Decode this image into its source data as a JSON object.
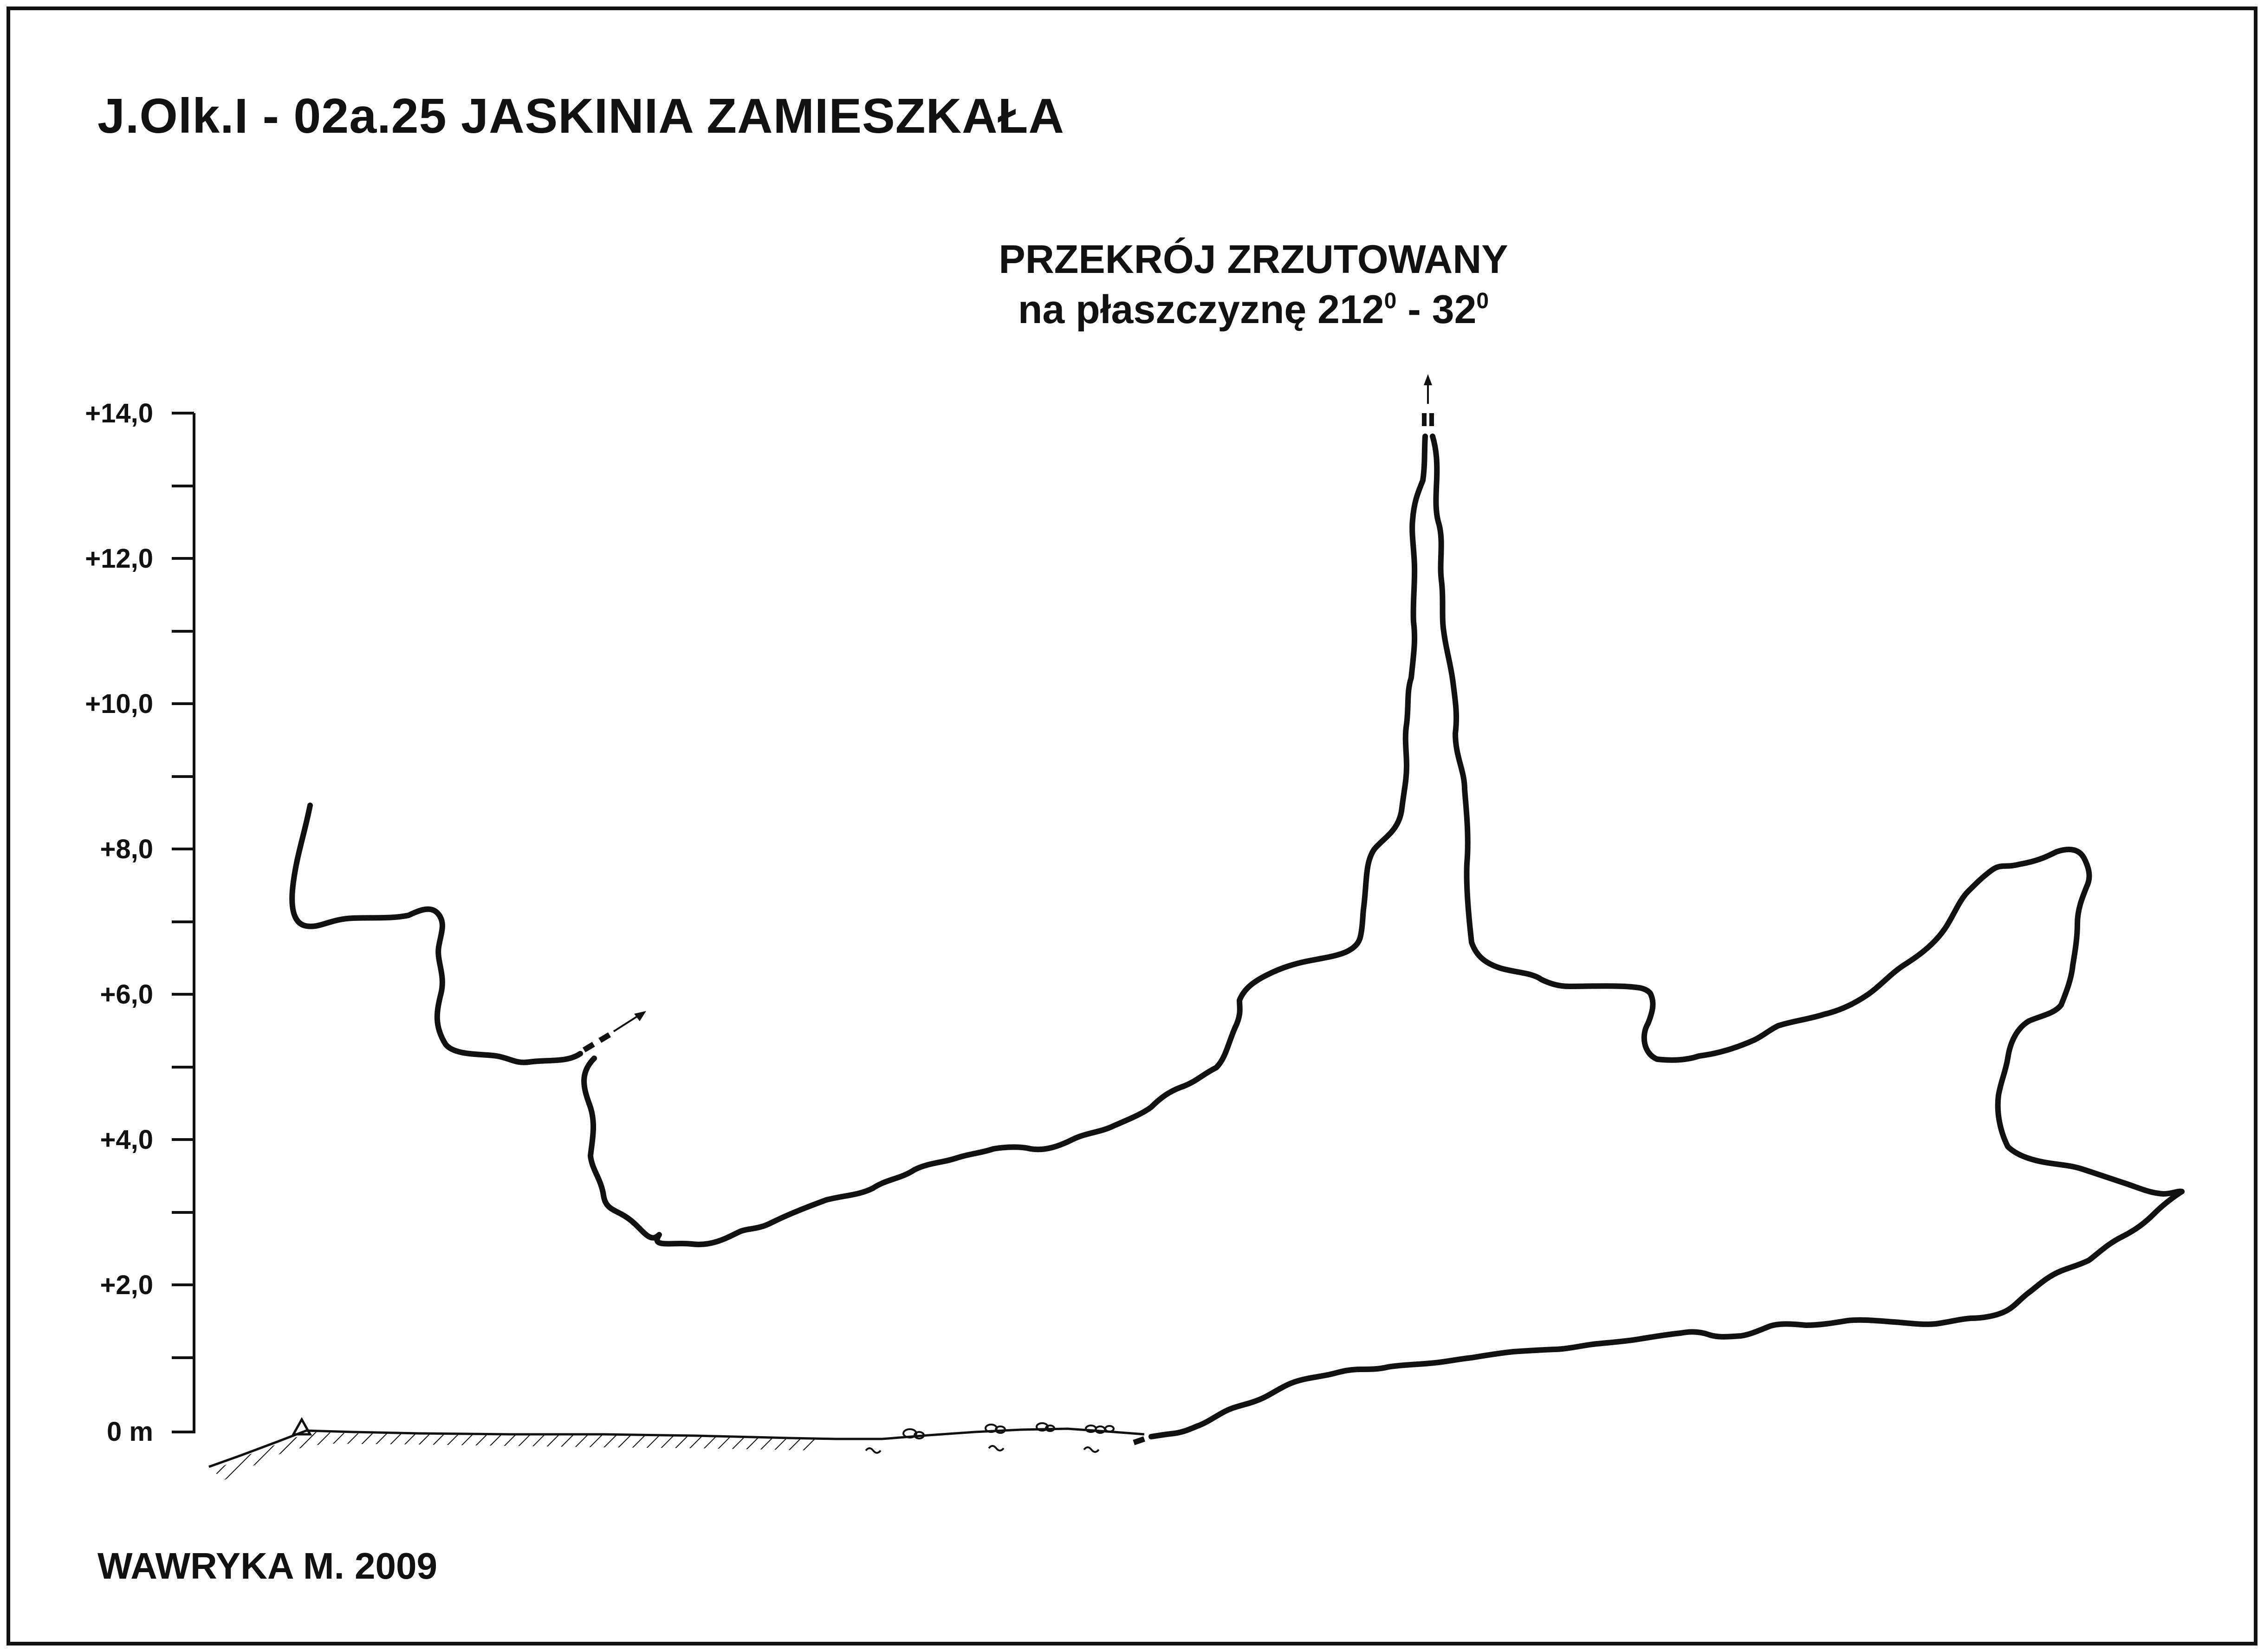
{
  "header": {
    "title": "J.Olk.I - 02a.25  JASKINIA ZAMIESZKAŁA",
    "subtitle_line1": "PRZEKRÓJ ZRZUTOWANY",
    "subtitle_line2_prefix": "na płaszczyznę 212",
    "subtitle_deg1": "0",
    "subtitle_mid": " - 32",
    "subtitle_deg2": "0"
  },
  "scale": {
    "labels": [
      "+14,0",
      "+12,0",
      "+10,0",
      "+8,0",
      "+6,0",
      "+4,0",
      "+2,0",
      "0 m"
    ]
  },
  "footer": {
    "author": "WAWRYKA M. 2009"
  },
  "colors": {
    "ink": "#111111",
    "paper": "#ffffff"
  }
}
